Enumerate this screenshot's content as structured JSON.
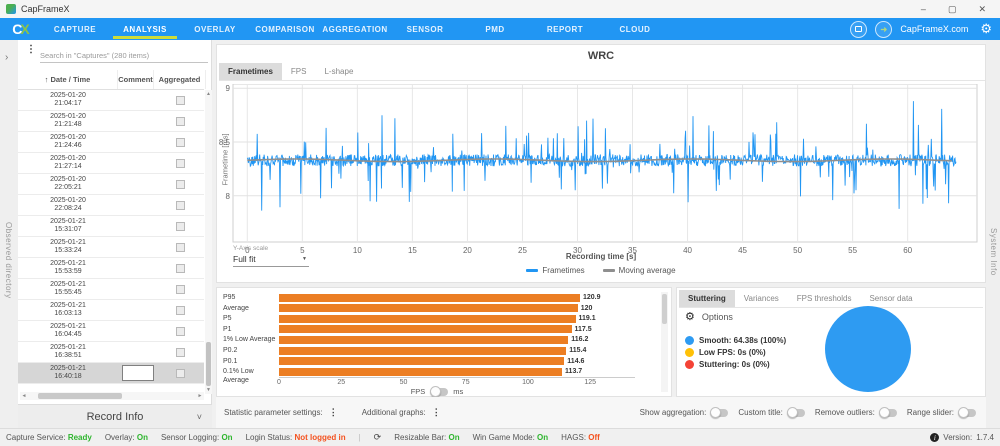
{
  "window": {
    "title": "CapFrameX",
    "minimize": "–",
    "maximize": "▢",
    "close": "✕"
  },
  "nav": {
    "items": [
      "CAPTURE",
      "ANALYSIS",
      "OVERLAY",
      "COMPARISON",
      "AGGREGATION",
      "SENSOR",
      "PMD",
      "REPORT",
      "CLOUD"
    ],
    "active": "ANALYSIS",
    "link": "CapFrameX.com",
    "accent_underline": "#cddc39",
    "bar_color": "#2196f3"
  },
  "sidebar": {
    "search_placeholder": "Search in \"Captures\" (280 items)",
    "columns": {
      "date": "Date / Time",
      "comment": "Comment",
      "aggregated": "Aggregated"
    },
    "sort_icon": "↑",
    "rows": [
      {
        "date": "2025-01-20",
        "time": "21:04:17"
      },
      {
        "date": "2025-01-20",
        "time": "21:21:48"
      },
      {
        "date": "2025-01-20",
        "time": "21:24:46"
      },
      {
        "date": "2025-01-20",
        "time": "21:27:14"
      },
      {
        "date": "2025-01-20",
        "time": "22:05:21"
      },
      {
        "date": "2025-01-20",
        "time": "22:08:24"
      },
      {
        "date": "2025-01-21",
        "time": "15:31:07"
      },
      {
        "date": "2025-01-21",
        "time": "15:33:24"
      },
      {
        "date": "2025-01-21",
        "time": "15:53:59"
      },
      {
        "date": "2025-01-21",
        "time": "15:55:45"
      },
      {
        "date": "2025-01-21",
        "time": "16:03:13"
      },
      {
        "date": "2025-01-21",
        "time": "16:04:45"
      },
      {
        "date": "2025-01-21",
        "time": "16:38:51"
      },
      {
        "date": "2025-01-21",
        "time": "16:40:18"
      }
    ],
    "selected_index": 13,
    "record_info_label": "Record Info",
    "observed_directory_label": "Observed directory"
  },
  "main": {
    "tabs": [
      "Frametimes",
      "FPS",
      "L-shape"
    ],
    "active_tab": "Frametimes",
    "yaxis_scale_label": "Y-Axis scale",
    "yaxis_scale_value": "Full fit",
    "system_info_label": "System Info"
  },
  "chart_data": [
    {
      "type": "line",
      "title": "WRC",
      "xlabel": "Recording time [s]",
      "ylabel": "Frametime [ms]",
      "xlim": [
        -1.3,
        66.3
      ],
      "ylim": [
        7.57,
        9.04
      ],
      "x_ticks": [
        0,
        5,
        10,
        15,
        20,
        25,
        30,
        35,
        40,
        45,
        50,
        55,
        60
      ],
      "y_ticks": [
        8,
        8.5,
        9
      ],
      "grid": true,
      "legend_position": "bottom",
      "series": [
        {
          "name": "Frametimes",
          "color": "#2196f3",
          "gen": {
            "seed": 42,
            "duration": 64.4,
            "dt": 0.045,
            "base": 8.33,
            "noise": 0.055,
            "spike_up_prob": 0.05,
            "spike_dn_prob": 0.042,
            "spike_min": 0.1,
            "spike_max": 0.52,
            "clamp": [
              7.78,
              8.92
            ]
          }
        },
        {
          "name": "Moving average",
          "color": "#8f8f8f",
          "gen": {
            "base": 8.33,
            "wobble": 0.012,
            "duration": 64.4
          }
        }
      ]
    },
    {
      "type": "bar",
      "orientation": "horizontal",
      "categories": [
        "P95",
        "Average",
        "P5",
        "P1",
        "1% Low Average",
        "P0.2",
        "P0.1",
        "0.1% Low Average"
      ],
      "values": [
        120.9,
        120,
        119.1,
        117.5,
        116.2,
        115.4,
        114.6,
        113.7
      ],
      "display": [
        "120.9",
        "120",
        "119.1",
        "117.5",
        "116.2",
        "115.4",
        "114.6",
        "113.7"
      ],
      "color": "#ec7e23",
      "xlim": [
        0,
        143
      ],
      "x_ticks": [
        0,
        25,
        50,
        75,
        100,
        125
      ],
      "unit_options": [
        "FPS",
        "ms"
      ],
      "unit_selected": "FPS"
    },
    {
      "type": "pie",
      "slices": [
        {
          "label": "Smooth",
          "value": 100,
          "color": "#2e9bf2"
        },
        {
          "label": "Low FPS",
          "value": 0,
          "color": "#ffc107"
        },
        {
          "label": "Stuttering",
          "value": 0,
          "color": "#f44336"
        }
      ]
    }
  ],
  "stutter_panel": {
    "tabs": [
      "Stuttering",
      "Variances",
      "FPS thresholds",
      "Sensor data"
    ],
    "active_tab": "Stuttering",
    "options_label": "Options",
    "legend": [
      {
        "label": "Smooth:",
        "value": "64.38s (100%)",
        "color": "#2e9bf2"
      },
      {
        "label": "Low FPS:",
        "value": "0s (0%)",
        "color": "#ffc107"
      },
      {
        "label": "Stuttering:",
        "value": "0s (0%)",
        "color": "#f44336"
      }
    ]
  },
  "toolbar": {
    "statistic_label": "Statistic parameter settings:",
    "additional_label": "Additional graphs:",
    "toggles": [
      {
        "label": "Show aggregation:",
        "on": false
      },
      {
        "label": "Custom title:",
        "on": false
      },
      {
        "label": "Remove outliers:",
        "on": false
      },
      {
        "label": "Range slider:",
        "on": false
      }
    ]
  },
  "statusbar": {
    "items": [
      {
        "label": "Capture Service:",
        "value": "Ready",
        "color": "#2eb52e"
      },
      {
        "label": "Overlay:",
        "value": "On",
        "color": "#2eb52e"
      },
      {
        "label": "Sensor Logging:",
        "value": "On",
        "color": "#2eb52e"
      },
      {
        "label": "Login Status:",
        "value": "Not logged in",
        "color": "#f4511e"
      },
      {
        "label": "Resizable Bar:",
        "value": "On",
        "color": "#2eb52e"
      },
      {
        "label": "Win Game Mode:",
        "value": "On",
        "color": "#2eb52e"
      },
      {
        "label": "HAGS:",
        "value": "Off",
        "color": "#f4511e"
      }
    ],
    "version_label": "Version:",
    "version": "1.7.4"
  },
  "icons": {
    "gear": "⚙",
    "kebab": "⋮",
    "sort_asc": "↑",
    "expander": "›",
    "chevron_down": "˅",
    "caret_down": "▼",
    "up": "▲",
    "down": "▼",
    "left": "◄",
    "right": "►",
    "gauge": "⟳",
    "login_arrow": "➜",
    "info": "i"
  }
}
